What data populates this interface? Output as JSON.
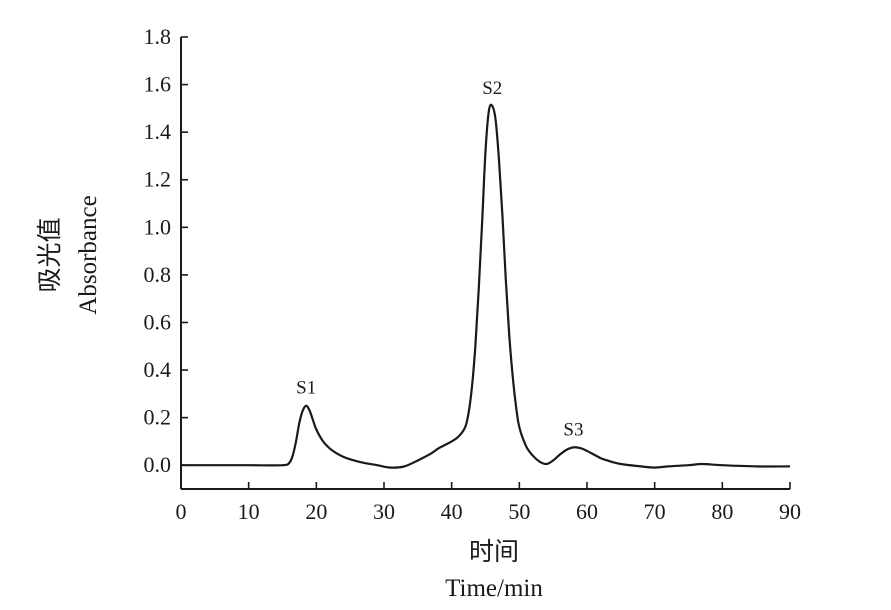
{
  "chart_data": {
    "type": "line",
    "title": "",
    "xlabel_zh": "时间",
    "xlabel_en": "Time/min",
    "ylabel_zh": "吸光值",
    "ylabel_en": "Absorbance",
    "xlim": [
      0,
      90
    ],
    "ylim": [
      -0.1,
      1.8
    ],
    "xticks": [
      "0",
      "10",
      "20",
      "30",
      "40",
      "50",
      "60",
      "70",
      "80",
      "90"
    ],
    "yticks": [
      "0.0",
      "0.2",
      "0.4",
      "0.6",
      "0.8",
      "1.0",
      "1.2",
      "1.4",
      "1.6",
      "1.8"
    ],
    "grid": false,
    "legend": "none",
    "line_color": "#1a1a1a",
    "series": [
      {
        "x": [
          0,
          5,
          10,
          15,
          16,
          16.5,
          17,
          17.5,
          18,
          18.5,
          19,
          19.5,
          20,
          21,
          22,
          23,
          24,
          25,
          27,
          29,
          31,
          33,
          35,
          37,
          38,
          39,
          40,
          41,
          42,
          42.5,
          43,
          43.5,
          44,
          44.5,
          45,
          45.5,
          46,
          46.5,
          47,
          47.5,
          48,
          48.5,
          49,
          49.5,
          50,
          51,
          52,
          53,
          54,
          55,
          56,
          57,
          58,
          59,
          60,
          61,
          62,
          63,
          65,
          68,
          70,
          72,
          75,
          77,
          80,
          85,
          90
        ],
        "y": [
          0.0,
          0.0,
          0.0,
          0.0,
          0.01,
          0.04,
          0.1,
          0.18,
          0.23,
          0.25,
          0.23,
          0.19,
          0.15,
          0.1,
          0.07,
          0.05,
          0.035,
          0.025,
          0.01,
          0.0,
          -0.01,
          -0.005,
          0.02,
          0.05,
          0.07,
          0.085,
          0.1,
          0.12,
          0.16,
          0.22,
          0.33,
          0.5,
          0.74,
          1.02,
          1.32,
          1.49,
          1.51,
          1.45,
          1.28,
          1.05,
          0.78,
          0.55,
          0.38,
          0.25,
          0.16,
          0.08,
          0.04,
          0.015,
          0.005,
          0.02,
          0.045,
          0.065,
          0.075,
          0.072,
          0.06,
          0.045,
          0.03,
          0.02,
          0.005,
          -0.005,
          -0.01,
          -0.005,
          0.0,
          0.005,
          0.0,
          -0.005,
          -0.005
        ]
      }
    ],
    "annotations": [
      {
        "text": "S1",
        "x": 18.5,
        "y": 0.25
      },
      {
        "text": "S2",
        "x": 46,
        "y": 1.51
      },
      {
        "text": "S3",
        "x": 58,
        "y": 0.075
      }
    ]
  }
}
